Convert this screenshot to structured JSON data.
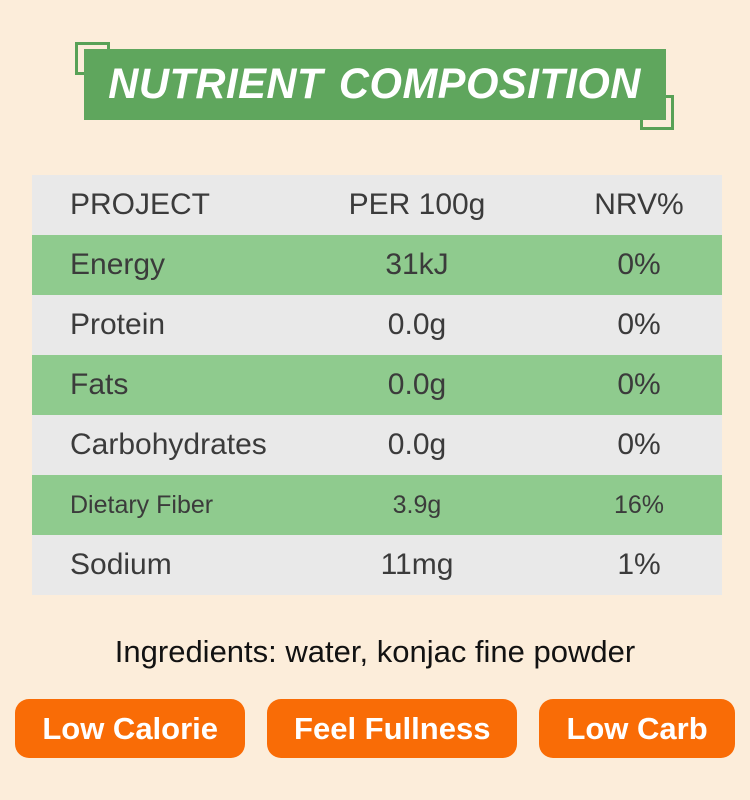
{
  "page": {
    "background": "#fcedda"
  },
  "header": {
    "title": "NUTRIENT COMPOSITION",
    "banner_color": "#5fa65d",
    "text_color": "#ffffff"
  },
  "table": {
    "columns": [
      "PROJECT",
      "PER 100g",
      "NRV%"
    ],
    "rows": [
      {
        "name": "Energy",
        "per100g": "31kJ",
        "nrv": "0%"
      },
      {
        "name": "Protein",
        "per100g": "0.0g",
        "nrv": "0%"
      },
      {
        "name": "Fats",
        "per100g": "0.0g",
        "nrv": "0%"
      },
      {
        "name": "Carbohydrates",
        "per100g": "0.0g",
        "nrv": "0%"
      },
      {
        "name": "Dietary Fiber",
        "per100g": "3.9g",
        "nrv": "16%"
      },
      {
        "name": "Sodium",
        "per100g": "11mg",
        "nrv": "1%"
      }
    ],
    "row_highlight_color": "#8fcb8e",
    "row_alt_color": "#e9e9e9",
    "text_color": "#3b3b3b"
  },
  "ingredients": {
    "text": "Ingredients: water, konjac fine powder"
  },
  "badges": {
    "color": "#f96c06",
    "items": [
      {
        "label": "Low Calorie"
      },
      {
        "label": "Feel Fullness"
      },
      {
        "label": "Low Carb"
      }
    ]
  }
}
